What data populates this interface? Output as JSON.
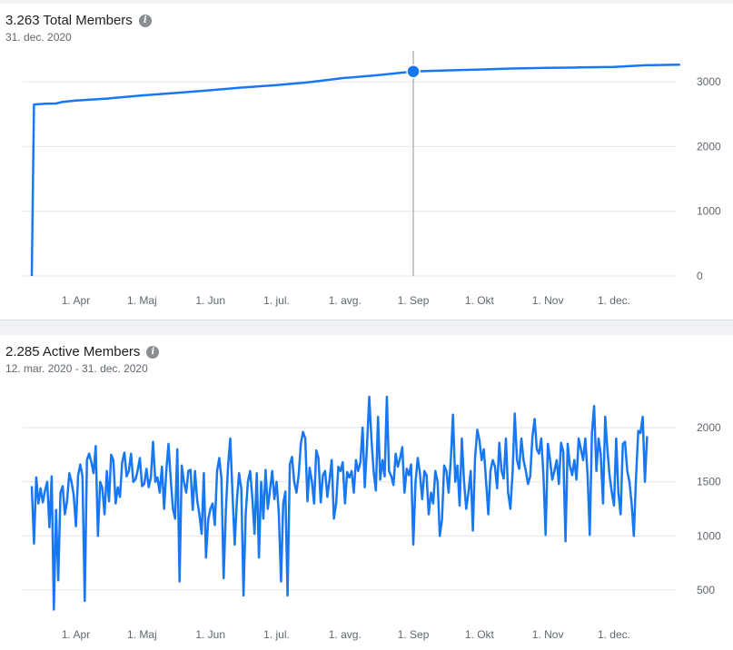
{
  "chart_data": [
    {
      "type": "line",
      "title": "3.263 Total Members",
      "subtitle": "31. dec. 2020",
      "x_tick_labels": [
        "1. Apr",
        "1. Maj",
        "1. Jun",
        "1. jul.",
        "1. avg.",
        "1. Sep",
        "1. Okt",
        "1. Nov",
        "1. dec."
      ],
      "y_tick_labels": [
        "0",
        "1000",
        "2000",
        "3000"
      ],
      "ylim": [
        0,
        3000
      ],
      "grid": true,
      "color": "#1877f2",
      "highlight": {
        "x": "2020-09-01",
        "y": 3160
      },
      "series": [
        {
          "points": [
            [
              "2020-03-12",
              0
            ],
            [
              "2020-03-13",
              2650
            ],
            [
              "2020-03-18",
              2660
            ],
            [
              "2020-03-23",
              2665
            ],
            [
              "2020-03-26",
              2690
            ],
            [
              "2020-04-01",
              2710
            ],
            [
              "2020-04-15",
              2740
            ],
            [
              "2020-05-01",
              2790
            ],
            [
              "2020-05-15",
              2825
            ],
            [
              "2020-06-01",
              2870
            ],
            [
              "2020-06-15",
              2910
            ],
            [
              "2020-07-01",
              2950
            ],
            [
              "2020-07-15",
              2990
            ],
            [
              "2020-08-01",
              3060
            ],
            [
              "2020-08-15",
              3100
            ],
            [
              "2020-09-01",
              3160
            ],
            [
              "2020-09-15",
              3175
            ],
            [
              "2020-10-01",
              3190
            ],
            [
              "2020-10-15",
              3205
            ],
            [
              "2020-11-01",
              3215
            ],
            [
              "2020-11-15",
              3222
            ],
            [
              "2020-12-01",
              3230
            ],
            [
              "2020-12-15",
              3255
            ],
            [
              "2020-12-31",
              3263
            ]
          ]
        }
      ]
    },
    {
      "type": "line",
      "title": "2.285 Active Members",
      "subtitle": "12. mar. 2020 - 31. dec. 2020",
      "x_tick_labels": [
        "1. Apr",
        "1. Maj",
        "1. Jun",
        "1. jul.",
        "1. avg.",
        "1. Sep",
        "1. Okt",
        "1. Nov",
        "1. dec."
      ],
      "y_tick_labels": [
        "500",
        "1000",
        "1500",
        "2000"
      ],
      "ylim": [
        500,
        2000
      ],
      "grid": true,
      "color": "#1877f2",
      "series": [
        {
          "start": "2020-03-12",
          "interval_days": 1,
          "values": [
            1460,
            930,
            1540,
            1300,
            1440,
            1310,
            1420,
            1500,
            1080,
            1550,
            320,
            1240,
            590,
            1400,
            1460,
            1200,
            1320,
            1580,
            1500,
            1380,
            1090,
            1560,
            1660,
            1550,
            400,
            1700,
            1760,
            1680,
            1580,
            1830,
            1000,
            1500,
            1440,
            1200,
            1600,
            1320,
            1750,
            1700,
            1300,
            1450,
            1360,
            1680,
            1770,
            1550,
            1600,
            1760,
            1500,
            1520,
            1600,
            1720,
            1460,
            1480,
            1620,
            1450,
            1540,
            1870,
            1500,
            1540,
            1400,
            1640,
            1250,
            1600,
            1850,
            1520,
            1250,
            1160,
            1800,
            580,
            1650,
            1500,
            1400,
            1600,
            1610,
            1240,
            1600,
            1330,
            1200,
            1020,
            1580,
            800,
            1150,
            1250,
            1300,
            1100,
            1600,
            1720,
            1530,
            610,
            1240,
            1650,
            1900,
            1400,
            920,
            1330,
            1580,
            1430,
            450,
            1200,
            1500,
            1600,
            1350,
            1020,
            1580,
            800,
            1500,
            1160,
            1610,
            1250,
            1420,
            1600,
            1340,
            1500,
            1220,
            580,
            1300,
            1410,
            450,
            1660,
            1730,
            1500,
            1400,
            1560,
            1850,
            1960,
            1900,
            1320,
            1630,
            1500,
            1300,
            1790,
            1720,
            1310,
            1560,
            1600,
            1360,
            1520,
            1700,
            1160,
            1300,
            1640,
            1600,
            1680,
            1300,
            1590,
            1540,
            1600,
            1400,
            1700,
            1600,
            1680,
            2000,
            1450,
            1840,
            2285,
            1900,
            1600,
            1420,
            2100,
            1520,
            1700,
            1550,
            2285,
            1600,
            1550,
            1470,
            1760,
            1640,
            1720,
            1820,
            1400,
            1620,
            1560,
            1660,
            920,
            1500,
            1720,
            1580,
            1340,
            1600,
            1560,
            1200,
            1400,
            1300,
            1600,
            1500,
            1000,
            1150,
            1650,
            1600,
            1400,
            1700,
            2120,
            1500,
            1650,
            1280,
            1900,
            1500,
            1250,
            1400,
            1600,
            1050,
            1720,
            1980,
            1880,
            1700,
            1800,
            1500,
            1200,
            1600,
            1700,
            1640,
            1440,
            1860,
            1600,
            1530,
            1900,
            1400,
            1250,
            1580,
            2130,
            1700,
            1620,
            1900,
            1700,
            1600,
            1480,
            1550,
            1920,
            2080,
            1800,
            1760,
            1900,
            1560,
            1010,
            1850,
            1700,
            1520,
            1600,
            1700,
            1480,
            1860,
            1780,
            950,
            1850,
            1650,
            1560,
            1700,
            1520,
            1900,
            1800,
            1700,
            1900,
            1560,
            1010,
            1950,
            2200,
            1600,
            1900,
            1750,
            1300,
            2100,
            1800,
            1560,
            1400,
            1280,
            1900,
            1400,
            1200,
            1850,
            1870,
            1600,
            1500,
            1300,
            1000,
            1550,
            1970,
            1950,
            2100,
            1500,
            1920
          ]
        }
      ]
    }
  ]
}
